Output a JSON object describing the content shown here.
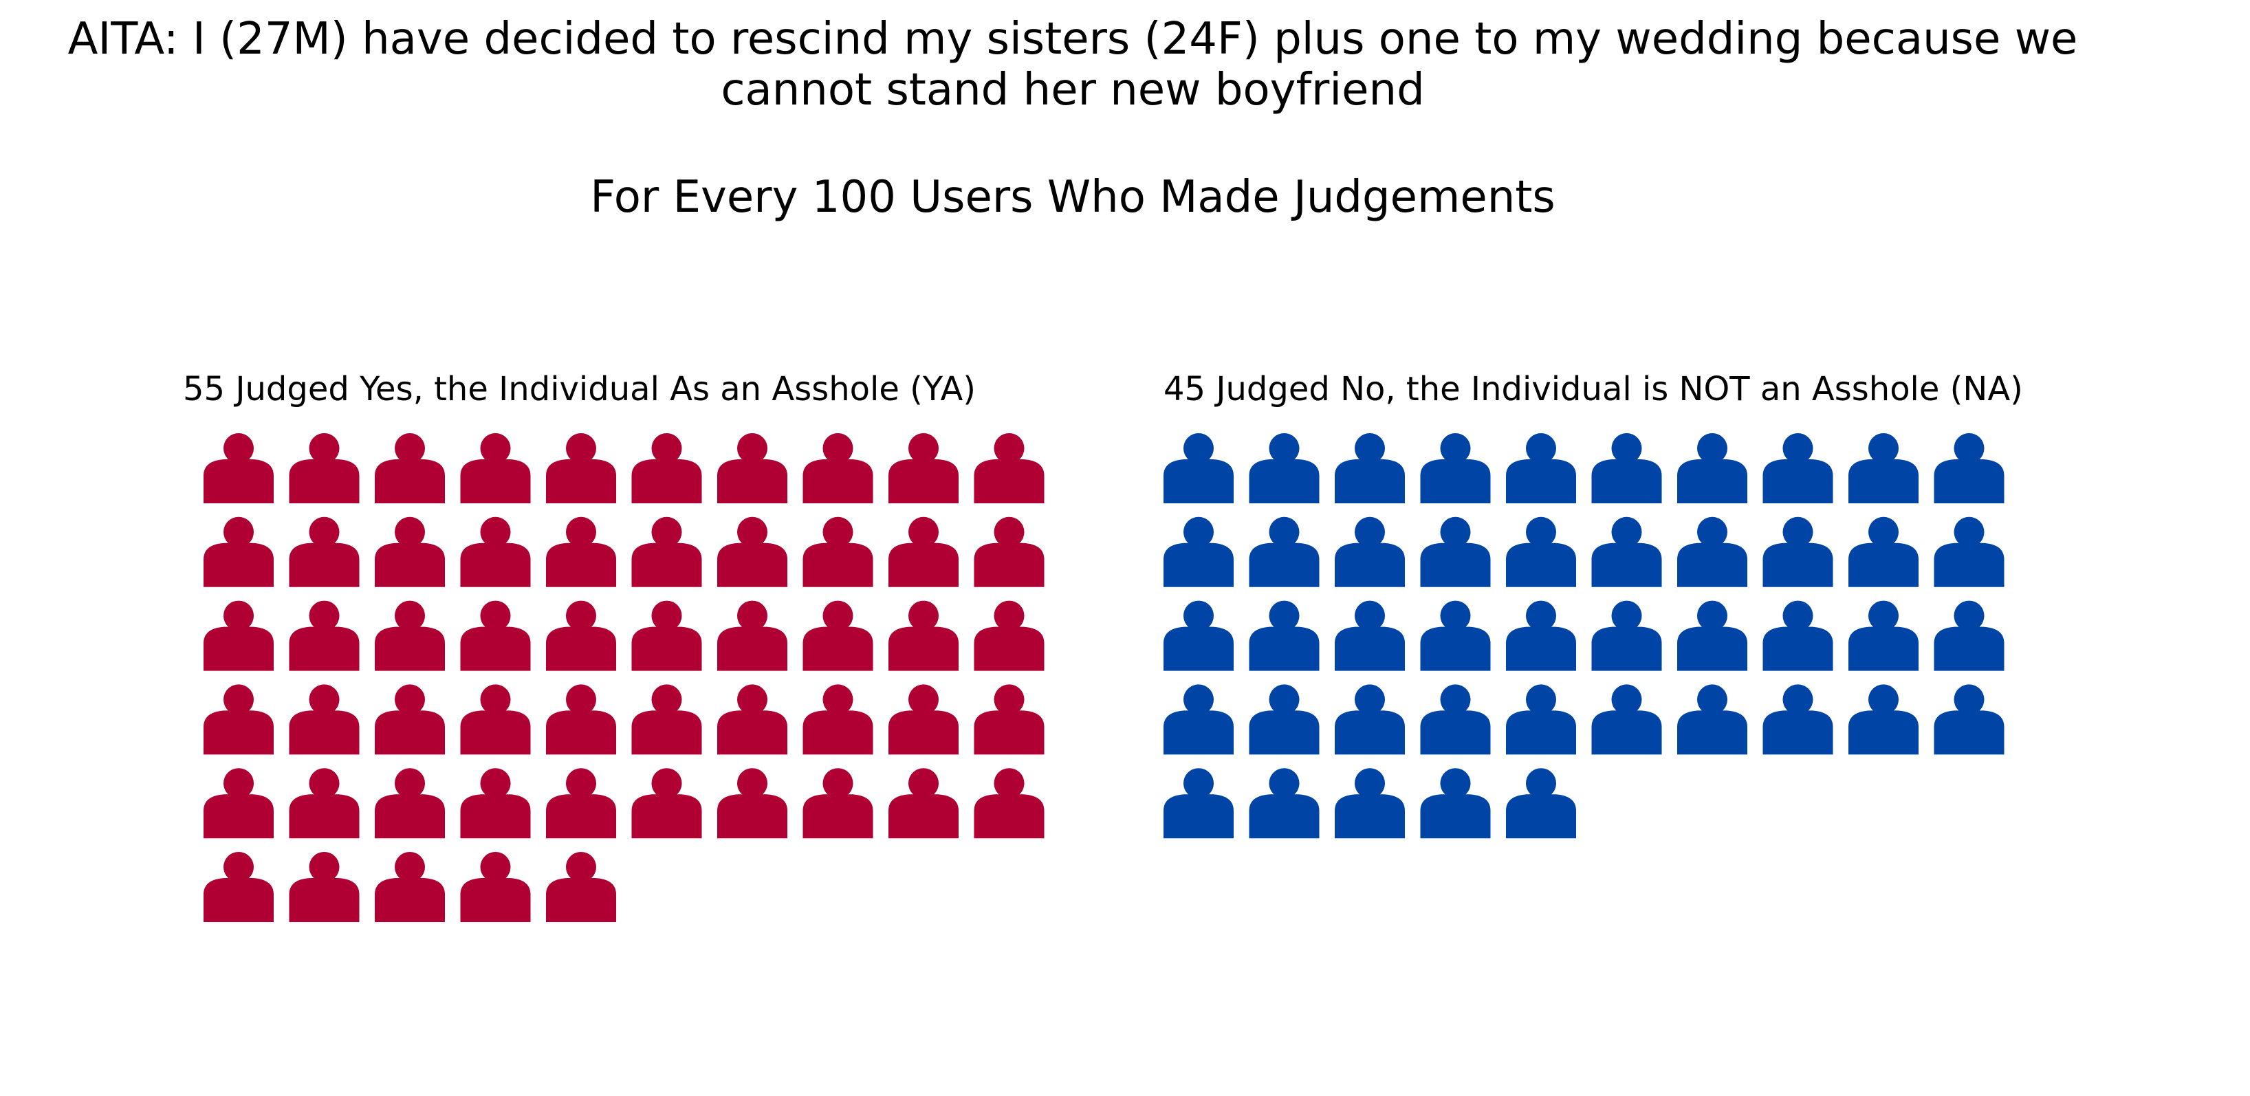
{
  "title": "AITA: I (27M) have decided to rescind my sisters (24F) plus one to my wedding because we\ncannot stand her new boyfriend",
  "subtitle": "For Every 100 Users Who Made Judgements",
  "chart_data": {
    "type": "pictograph",
    "unit_icon": "person-icon",
    "total": 100,
    "icons_per_row": 10,
    "groups": [
      {
        "key": "YA",
        "label": "55 Judged Yes, the Individual As an Asshole (YA)",
        "count": 55,
        "color": "#b00033"
      },
      {
        "key": "NA",
        "label": "45 Judged No, the Individual is NOT an Asshole (NA)",
        "count": 45,
        "color": "#0044a6"
      }
    ]
  }
}
